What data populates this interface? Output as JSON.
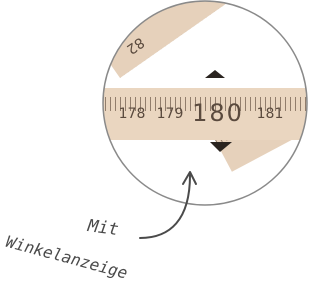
{
  "annotation": {
    "lines": [
      "Mit",
      "Winkelanzeige"
    ]
  },
  "ruler": {
    "labels": [
      "178",
      "179",
      "180",
      "181"
    ],
    "angled_label": "82"
  }
}
